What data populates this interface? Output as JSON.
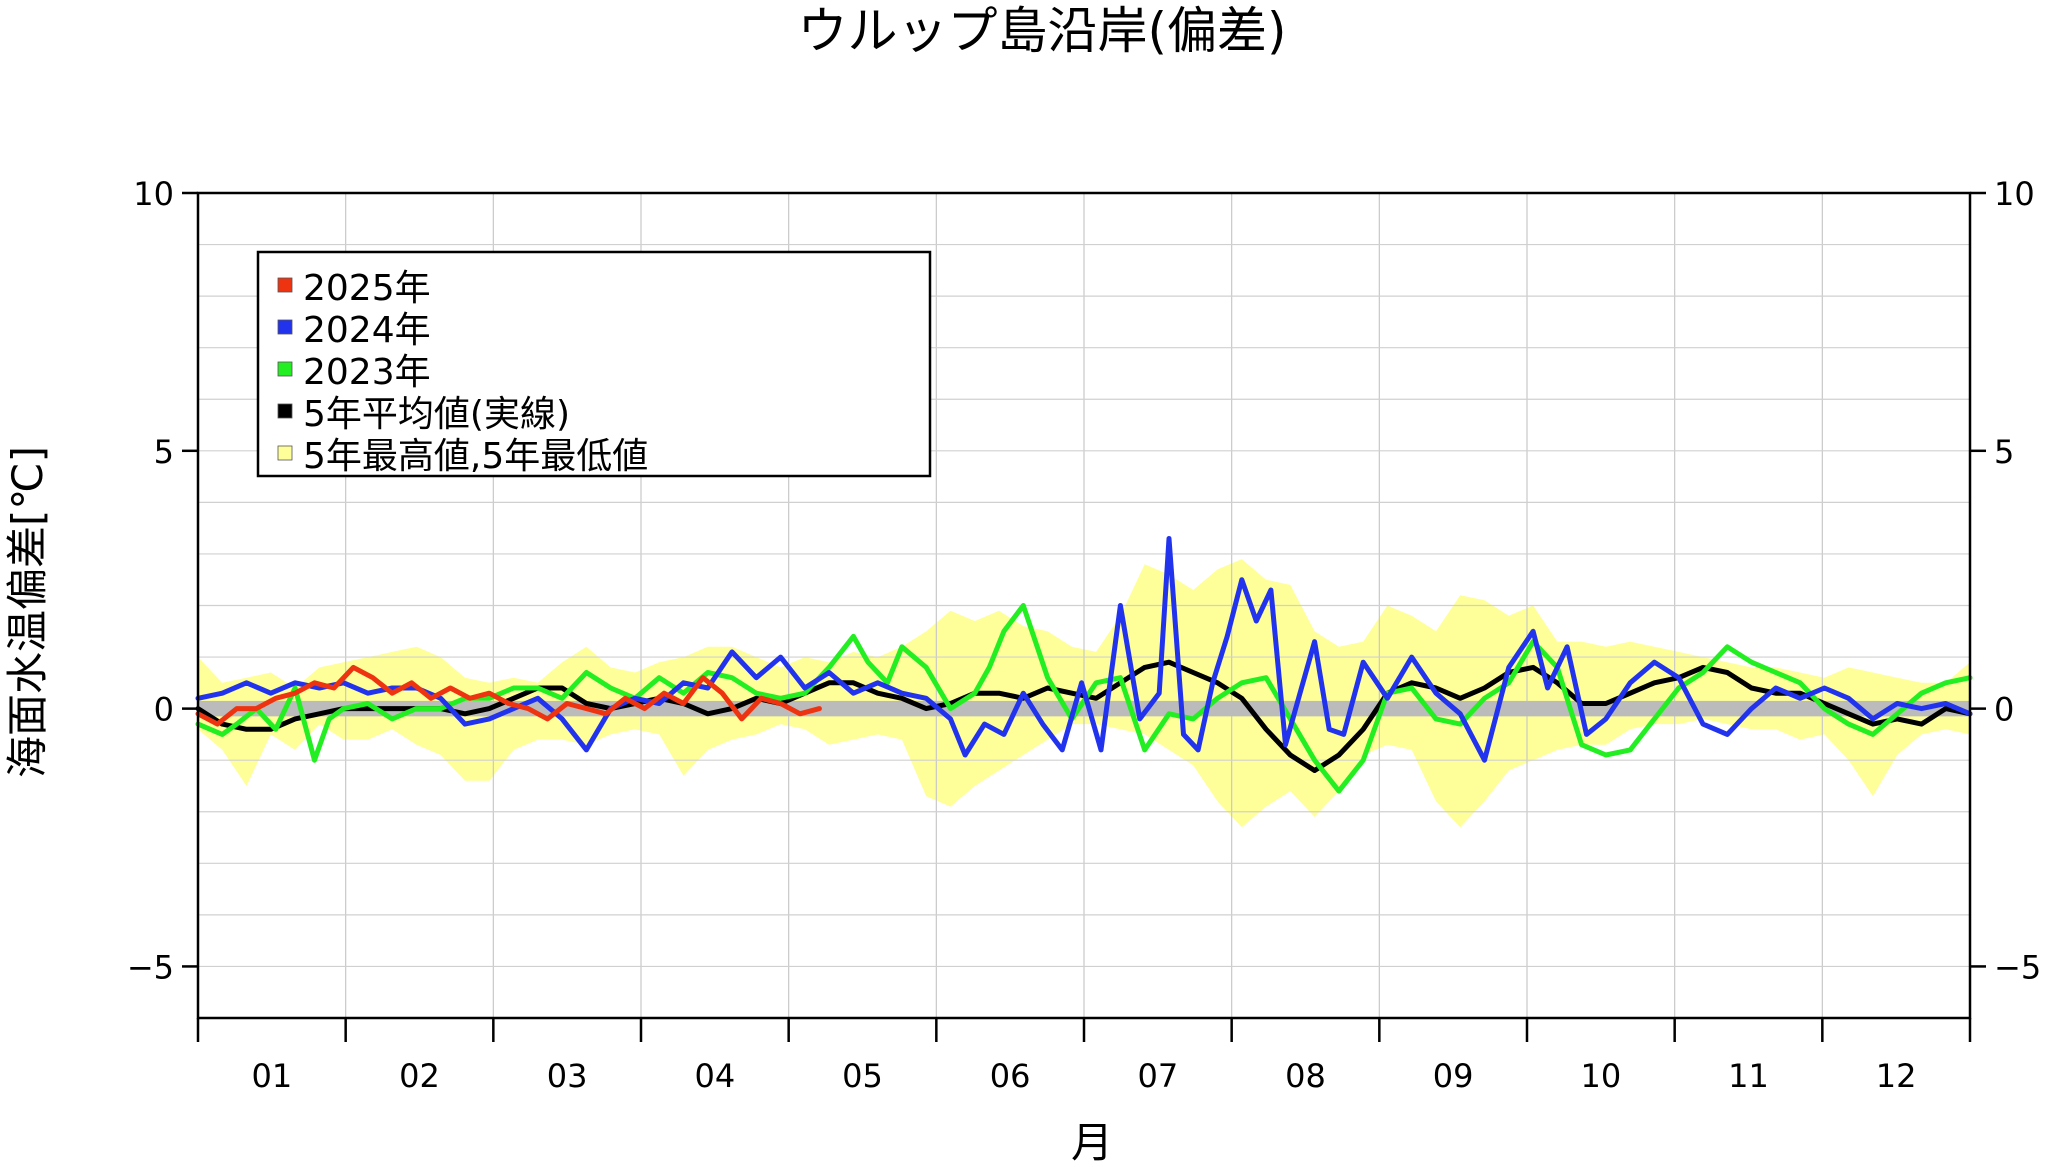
{
  "chart_data": {
    "type": "line",
    "title": "ウルップ島沿岸(偏差)",
    "xlabel": "月",
    "ylabel": "海面水温偏差[℃]",
    "xlim": [
      0,
      365
    ],
    "ylim": [
      -6,
      10
    ],
    "yticks": [
      10,
      5,
      0,
      -5
    ],
    "yticks_right": [
      10,
      5,
      0,
      -5
    ],
    "ytick_labels": [
      "10",
      "5",
      "0",
      "−5"
    ],
    "xtick_labels": [
      "01",
      "02",
      "03",
      "04",
      "05",
      "06",
      "07",
      "08",
      "09",
      "10",
      "11",
      "12"
    ],
    "grid": true,
    "legend_placement": "top-left",
    "legend": [
      {
        "label": "2025年",
        "color": "#ee3311"
      },
      {
        "label": "2024年",
        "color": "#2233ee"
      },
      {
        "label": "2023年",
        "color": "#22ee22"
      },
      {
        "label": "5年平均値(実線)",
        "color": "#000000"
      },
      {
        "label": "5年最高値,5年最低値",
        "color": "#ffff99"
      }
    ],
    "normal_band": {
      "color": "#bbbbbb",
      "low": -0.15,
      "high": 0.15
    },
    "range_band": {
      "color": "#ffff99",
      "x": [
        0,
        5,
        10,
        15,
        20,
        25,
        30,
        35,
        40,
        45,
        50,
        55,
        60,
        65,
        70,
        75,
        80,
        85,
        90,
        95,
        100,
        105,
        110,
        115,
        120,
        125,
        130,
        135,
        140,
        145,
        150,
        155,
        160,
        165,
        170,
        175,
        180,
        185,
        190,
        195,
        200,
        205,
        210,
        215,
        220,
        225,
        230,
        235,
        240,
        245,
        250,
        255,
        260,
        265,
        270,
        275,
        280,
        285,
        290,
        295,
        300,
        305,
        310,
        315,
        320,
        325,
        330,
        335,
        340,
        345,
        350,
        355,
        360,
        365
      ],
      "high": [
        1.0,
        0.5,
        0.6,
        0.7,
        0.4,
        0.8,
        0.9,
        1.0,
        1.1,
        1.2,
        1.0,
        0.6,
        0.5,
        0.6,
        0.5,
        0.9,
        1.2,
        0.8,
        0.7,
        0.9,
        1.0,
        1.2,
        1.2,
        1.0,
        0.8,
        1.0,
        0.9,
        1.1,
        1.0,
        1.2,
        1.5,
        1.9,
        1.7,
        1.9,
        1.6,
        1.5,
        1.2,
        1.1,
        1.8,
        2.8,
        2.6,
        2.3,
        2.7,
        2.9,
        2.5,
        2.4,
        1.5,
        1.2,
        1.3,
        2.0,
        1.8,
        1.5,
        2.2,
        2.1,
        1.8,
        2.0,
        1.3,
        1.3,
        1.2,
        1.3,
        1.2,
        1.1,
        1.0,
        0.9,
        0.8,
        0.8,
        0.7,
        0.6,
        0.8,
        0.7,
        0.6,
        0.5,
        0.5,
        0.9
      ],
      "low": [
        -0.4,
        -0.8,
        -1.5,
        -0.5,
        -0.8,
        -0.3,
        -0.6,
        -0.6,
        -0.4,
        -0.7,
        -0.9,
        -1.4,
        -1.4,
        -0.8,
        -0.6,
        -0.6,
        -0.7,
        -0.5,
        -0.4,
        -0.5,
        -1.3,
        -0.8,
        -0.6,
        -0.5,
        -0.3,
        -0.4,
        -0.7,
        -0.6,
        -0.5,
        -0.6,
        -1.7,
        -1.9,
        -1.5,
        -1.2,
        -0.9,
        -0.6,
        -0.3,
        -0.3,
        -0.4,
        -0.5,
        -0.8,
        -1.1,
        -1.8,
        -2.3,
        -1.9,
        -1.6,
        -2.1,
        -1.6,
        -0.9,
        -0.7,
        -0.8,
        -1.8,
        -2.3,
        -1.8,
        -1.2,
        -1.0,
        -0.8,
        -0.7,
        -0.7,
        -0.4,
        -0.3,
        -0.3,
        -0.2,
        -0.3,
        -0.4,
        -0.4,
        -0.6,
        -0.5,
        -1.0,
        -1.7,
        -0.9,
        -0.5,
        -0.4,
        -0.5
      ]
    },
    "series": [
      {
        "name": "5年平均値(実線)",
        "color": "#000000",
        "x": [
          0,
          5,
          10,
          15,
          20,
          25,
          30,
          35,
          40,
          45,
          50,
          55,
          60,
          65,
          70,
          75,
          80,
          85,
          90,
          95,
          100,
          105,
          110,
          115,
          120,
          125,
          130,
          135,
          140,
          145,
          150,
          155,
          160,
          165,
          170,
          175,
          180,
          185,
          190,
          195,
          200,
          205,
          210,
          215,
          220,
          225,
          230,
          235,
          240,
          245,
          250,
          255,
          260,
          265,
          270,
          275,
          280,
          285,
          290,
          295,
          300,
          305,
          310,
          315,
          320,
          325,
          330,
          335,
          340,
          345,
          350,
          355,
          360,
          365
        ],
        "y": [
          0.0,
          -0.3,
          -0.4,
          -0.4,
          -0.2,
          -0.1,
          0.0,
          0.0,
          0.0,
          0.0,
          0.0,
          -0.1,
          0.0,
          0.2,
          0.4,
          0.4,
          0.1,
          0.0,
          0.1,
          0.2,
          0.1,
          -0.1,
          0.0,
          0.2,
          0.1,
          0.3,
          0.5,
          0.5,
          0.3,
          0.2,
          0.0,
          0.1,
          0.3,
          0.3,
          0.2,
          0.4,
          0.3,
          0.2,
          0.5,
          0.8,
          0.9,
          0.7,
          0.5,
          0.2,
          -0.4,
          -0.9,
          -1.2,
          -0.9,
          -0.4,
          0.3,
          0.5,
          0.4,
          0.2,
          0.4,
          0.7,
          0.8,
          0.5,
          0.1,
          0.1,
          0.3,
          0.5,
          0.6,
          0.8,
          0.7,
          0.4,
          0.3,
          0.3,
          0.1,
          -0.1,
          -0.3,
          -0.2,
          -0.3,
          0.0,
          -0.1
        ]
      },
      {
        "name": "2023年",
        "color": "#22ee22",
        "x": [
          0,
          5,
          8,
          12,
          16,
          20,
          24,
          27,
          30,
          35,
          40,
          45,
          50,
          55,
          60,
          65,
          70,
          75,
          80,
          85,
          90,
          95,
          100,
          105,
          110,
          115,
          120,
          125,
          130,
          135,
          138,
          142,
          145,
          150,
          155,
          160,
          163,
          166,
          170,
          175,
          180,
          185,
          190,
          195,
          200,
          205,
          210,
          215,
          220,
          225,
          230,
          235,
          240,
          245,
          250,
          255,
          260,
          265,
          270,
          275,
          280,
          285,
          290,
          295,
          300,
          305,
          310,
          315,
          320,
          325,
          330,
          335,
          340,
          345,
          350,
          355,
          360,
          365
        ],
        "y": [
          -0.3,
          -0.5,
          -0.3,
          0.0,
          -0.4,
          0.4,
          -1.0,
          -0.2,
          0.0,
          0.1,
          -0.2,
          0.0,
          0.0,
          0.2,
          0.2,
          0.4,
          0.4,
          0.2,
          0.7,
          0.4,
          0.2,
          0.6,
          0.3,
          0.7,
          0.6,
          0.3,
          0.2,
          0.3,
          0.8,
          1.4,
          0.9,
          0.5,
          1.2,
          0.8,
          0.0,
          0.3,
          0.8,
          1.5,
          2.0,
          0.6,
          -0.2,
          0.5,
          0.6,
          -0.8,
          -0.1,
          -0.2,
          0.2,
          0.5,
          0.6,
          -0.2,
          -1.0,
          -1.6,
          -1.0,
          0.3,
          0.4,
          -0.2,
          -0.3,
          0.2,
          0.5,
          1.3,
          0.8,
          -0.7,
          -0.9,
          -0.8,
          -0.2,
          0.4,
          0.7,
          1.2,
          0.9,
          0.7,
          0.5,
          0.0,
          -0.3,
          -0.5,
          -0.1,
          0.3,
          0.5,
          0.6
        ]
      },
      {
        "name": "2024年",
        "color": "#2233ee",
        "x": [
          0,
          5,
          10,
          15,
          20,
          25,
          30,
          35,
          40,
          45,
          50,
          55,
          60,
          65,
          70,
          75,
          80,
          85,
          90,
          95,
          100,
          105,
          110,
          115,
          120,
          125,
          130,
          135,
          140,
          145,
          150,
          155,
          158,
          162,
          166,
          170,
          174,
          178,
          182,
          186,
          190,
          194,
          198,
          200,
          203,
          206,
          209,
          212,
          215,
          218,
          221,
          224,
          227,
          230,
          233,
          236,
          240,
          245,
          250,
          255,
          260,
          265,
          270,
          275,
          278,
          282,
          286,
          290,
          295,
          300,
          305,
          310,
          315,
          320,
          325,
          330,
          335,
          340,
          345,
          350,
          355,
          360,
          365
        ],
        "y": [
          0.2,
          0.3,
          0.5,
          0.3,
          0.5,
          0.4,
          0.5,
          0.3,
          0.4,
          0.4,
          0.2,
          -0.3,
          -0.2,
          0.0,
          0.2,
          -0.2,
          -0.8,
          0.0,
          0.2,
          0.1,
          0.5,
          0.4,
          1.1,
          0.6,
          1.0,
          0.4,
          0.7,
          0.3,
          0.5,
          0.3,
          0.2,
          -0.2,
          -0.9,
          -0.3,
          -0.5,
          0.3,
          -0.3,
          -0.8,
          0.5,
          -0.8,
          2.0,
          -0.2,
          0.3,
          3.3,
          -0.5,
          -0.8,
          0.5,
          1.4,
          2.5,
          1.7,
          2.3,
          -0.7,
          0.3,
          1.3,
          -0.4,
          -0.5,
          0.9,
          0.2,
          1.0,
          0.3,
          -0.1,
          -1.0,
          0.8,
          1.5,
          0.4,
          1.2,
          -0.5,
          -0.2,
          0.5,
          0.9,
          0.6,
          -0.3,
          -0.5,
          0.0,
          0.4,
          0.2,
          0.4,
          0.2,
          -0.2,
          0.1,
          0.0,
          0.1,
          -0.1
        ]
      },
      {
        "name": "2025年",
        "color": "#ee3311",
        "x": [
          0,
          4,
          8,
          12,
          16,
          20,
          24,
          28,
          32,
          36,
          40,
          44,
          48,
          52,
          56,
          60,
          64,
          68,
          72,
          76,
          80,
          84,
          88,
          92,
          96,
          100,
          104,
          108,
          112,
          116,
          120,
          124,
          128
        ],
        "y": [
          -0.1,
          -0.3,
          0.0,
          0.0,
          0.2,
          0.3,
          0.5,
          0.4,
          0.8,
          0.6,
          0.3,
          0.5,
          0.2,
          0.4,
          0.2,
          0.3,
          0.1,
          0.0,
          -0.2,
          0.1,
          0.0,
          -0.1,
          0.2,
          0.0,
          0.3,
          0.1,
          0.6,
          0.3,
          -0.2,
          0.2,
          0.1,
          -0.1,
          0.0
        ]
      }
    ]
  }
}
